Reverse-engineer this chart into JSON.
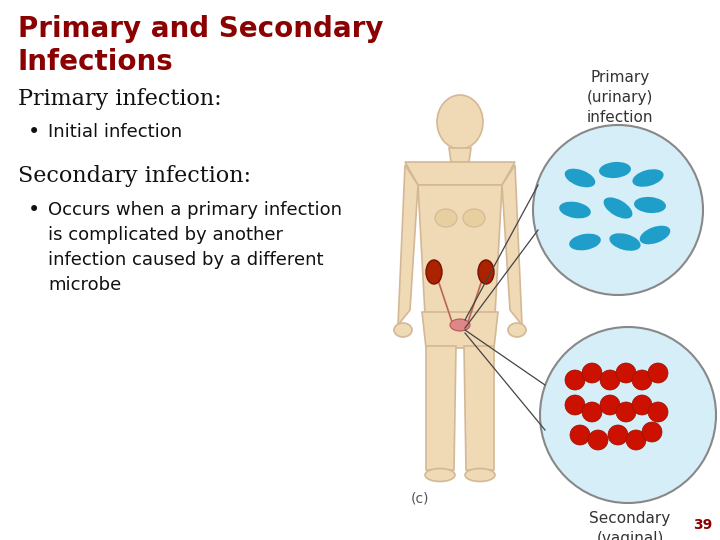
{
  "title_line1": "Primary and Secondary",
  "title_line2": "Infections",
  "title_color": "#8B0000",
  "title_fontsize": 20,
  "section1_header": "Primary infection:",
  "section1_bullet": "Initial infection",
  "section2_header": "Secondary infection:",
  "section2_bullet": "Occurs when a primary infection\nis complicated by another\ninfection caused by a different\nmicrobe",
  "section_fontsize": 15,
  "bullet_fontsize": 13,
  "text_color": "#111111",
  "bg_color": "#ffffff",
  "label_primary": "Primary\n(urinary)\ninfection",
  "label_secondary": "Secondary\n(vaginal)\ninfection",
  "label_c": "(c)",
  "page_num": "39",
  "primary_circle_color": "#d6eef8",
  "secondary_circle_color": "#d6eef8",
  "primary_bacteria_color": "#1e9ec8",
  "secondary_bacteria_color": "#cc1100",
  "body_color": "#f0d9b5",
  "body_edge_color": "#d4b896",
  "kidney_color": "#aa2200",
  "label_fontsize": 11,
  "circle_edge_color": "#888888"
}
